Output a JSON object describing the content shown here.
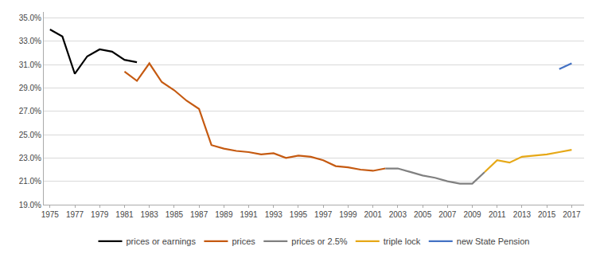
{
  "chart_data": {
    "type": "line",
    "xlim": [
      1974.5,
      2018.0
    ],
    "xticks": [
      1975,
      1977,
      1979,
      1981,
      1983,
      1985,
      1987,
      1989,
      1991,
      1993,
      1995,
      1997,
      1999,
      2001,
      2003,
      2005,
      2007,
      2009,
      2011,
      2013,
      2015,
      2017
    ],
    "ylim": [
      0.19,
      0.355
    ],
    "yticks": [
      {
        "value": 0.19,
        "label": "19.0%"
      },
      {
        "value": 0.21,
        "label": "21.0%"
      },
      {
        "value": 0.23,
        "label": "23.0%"
      },
      {
        "value": 0.25,
        "label": "25.0%"
      },
      {
        "value": 0.27,
        "label": "27.0%"
      },
      {
        "value": 0.29,
        "label": "29.0%"
      },
      {
        "value": 0.31,
        "label": "31.0%"
      },
      {
        "value": 0.33,
        "label": "33.0%"
      },
      {
        "value": 0.35,
        "label": "35.0%"
      }
    ],
    "grid": "y",
    "legend": "bottom",
    "series": [
      {
        "name": "prices or earnings",
        "color": "#000000",
        "x": [
          1975,
          1976,
          1977,
          1978,
          1979,
          1980,
          1981,
          1982
        ],
        "values": [
          0.34,
          0.334,
          0.302,
          0.317,
          0.323,
          0.321,
          0.314,
          0.312
        ]
      },
      {
        "name": "prices",
        "color": "#c55a11",
        "x": [
          1981,
          1982,
          1983,
          1984,
          1985,
          1986,
          1987,
          1988,
          1989,
          1990,
          1991,
          1992,
          1993,
          1994,
          1995,
          1996,
          1997,
          1998,
          1999,
          2000,
          2001,
          2002
        ],
        "values": [
          0.304,
          0.296,
          0.311,
          0.295,
          0.288,
          0.279,
          0.272,
          0.241,
          0.238,
          0.236,
          0.235,
          0.233,
          0.234,
          0.23,
          0.232,
          0.231,
          0.228,
          0.223,
          0.222,
          0.22,
          0.219,
          0.221
        ]
      },
      {
        "name": "prices or 2.5%",
        "color": "#808080",
        "x": [
          2002,
          2003,
          2004,
          2005,
          2006,
          2007,
          2008,
          2009,
          2010
        ],
        "values": [
          0.221,
          0.221,
          0.218,
          0.215,
          0.213,
          0.21,
          0.208,
          0.208,
          0.218
        ]
      },
      {
        "name": "triple lock",
        "color": "#e6a817",
        "x": [
          2010,
          2011,
          2012,
          2013,
          2014,
          2015,
          2016,
          2017
        ],
        "values": [
          0.218,
          0.228,
          0.226,
          0.231,
          0.232,
          0.233,
          0.235,
          0.237
        ]
      },
      {
        "name": "new State Pension",
        "color": "#4472c4",
        "x": [
          2016,
          2017
        ],
        "values": [
          0.306,
          0.311
        ]
      }
    ]
  }
}
